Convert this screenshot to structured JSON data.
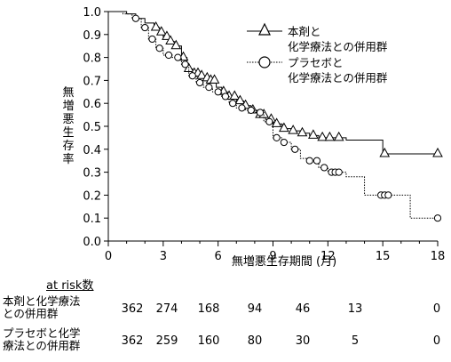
{
  "chart_data": {
    "type": "line",
    "subtype": "kaplan-meier",
    "ylabel": "無増悪生存率",
    "xlabel": "無増悪生存期間 (月)",
    "xlim": [
      0,
      18
    ],
    "ylim": [
      0,
      1.0
    ],
    "xticks": [
      "0",
      "3",
      "6",
      "9",
      "12",
      "15",
      "18"
    ],
    "yticks": [
      "0.0",
      "0.1",
      "0.2",
      "0.3",
      "0.4",
      "0.5",
      "0.6",
      "0.7",
      "0.8",
      "0.9",
      "1.0"
    ],
    "legend_position": "top-right",
    "series": [
      {
        "name": "本剤と\n化学療法との併用群",
        "marker": "triangle",
        "line_style": "solid",
        "steps": [
          [
            0,
            1.0
          ],
          [
            0.5,
            1.0
          ],
          [
            1.0,
            0.99
          ],
          [
            1.5,
            0.97
          ],
          [
            2.0,
            0.95
          ],
          [
            2.5,
            0.93
          ],
          [
            2.8,
            0.91
          ],
          [
            3.0,
            0.89
          ],
          [
            3.3,
            0.87
          ],
          [
            3.6,
            0.85
          ],
          [
            4.0,
            0.8
          ],
          [
            4.3,
            0.75
          ],
          [
            4.6,
            0.73
          ],
          [
            5.0,
            0.72
          ],
          [
            5.3,
            0.71
          ],
          [
            5.6,
            0.7
          ],
          [
            5.9,
            0.67
          ],
          [
            6.2,
            0.65
          ],
          [
            6.5,
            0.63
          ],
          [
            7.0,
            0.61
          ],
          [
            7.4,
            0.59
          ],
          [
            7.8,
            0.57
          ],
          [
            8.2,
            0.55
          ],
          [
            8.6,
            0.53
          ],
          [
            9.0,
            0.51
          ],
          [
            9.5,
            0.49
          ],
          [
            10.0,
            0.48
          ],
          [
            10.5,
            0.47
          ],
          [
            11.0,
            0.46
          ],
          [
            11.5,
            0.45
          ],
          [
            12.0,
            0.45
          ],
          [
            13.0,
            0.44
          ],
          [
            14.0,
            0.44
          ],
          [
            15.0,
            0.38
          ],
          [
            18.0,
            0.38
          ]
        ],
        "censor_x": [
          2.6,
          2.9,
          3.2,
          3.4,
          3.7,
          4.1,
          4.4,
          4.7,
          4.9,
          5.1,
          5.4,
          5.6,
          5.8,
          6.3,
          6.6,
          6.9,
          7.2,
          7.5,
          7.9,
          8.3,
          8.5,
          8.9,
          9.2,
          9.6,
          10.1,
          10.6,
          11.2,
          11.7,
          12.1,
          12.6,
          15.1,
          18.0
        ]
      },
      {
        "name": "プラセボと\n化学療法との併用群",
        "marker": "circle",
        "line_style": "dotted",
        "steps": [
          [
            0,
            1.0
          ],
          [
            0.8,
            0.99
          ],
          [
            1.3,
            0.97
          ],
          [
            1.8,
            0.93
          ],
          [
            2.2,
            0.88
          ],
          [
            2.6,
            0.84
          ],
          [
            3.0,
            0.81
          ],
          [
            3.5,
            0.8
          ],
          [
            4.0,
            0.77
          ],
          [
            4.4,
            0.72
          ],
          [
            4.8,
            0.69
          ],
          [
            5.2,
            0.67
          ],
          [
            5.7,
            0.65
          ],
          [
            6.2,
            0.63
          ],
          [
            6.6,
            0.6
          ],
          [
            7.0,
            0.58
          ],
          [
            7.5,
            0.57
          ],
          [
            8.0,
            0.56
          ],
          [
            8.5,
            0.52
          ],
          [
            9.0,
            0.45
          ],
          [
            9.5,
            0.43
          ],
          [
            10.0,
            0.4
          ],
          [
            10.5,
            0.36
          ],
          [
            11.0,
            0.35
          ],
          [
            11.5,
            0.32
          ],
          [
            12.0,
            0.3
          ],
          [
            13.0,
            0.28
          ],
          [
            14.0,
            0.2
          ],
          [
            15.0,
            0.2
          ],
          [
            16.0,
            0.2
          ],
          [
            16.5,
            0.1
          ],
          [
            18.0,
            0.1
          ]
        ],
        "censor_x": [
          1.5,
          2.0,
          2.4,
          2.8,
          3.3,
          3.8,
          4.2,
          4.6,
          5.0,
          5.5,
          6.0,
          6.4,
          6.8,
          7.3,
          7.8,
          8.3,
          8.8,
          9.2,
          9.6,
          10.2,
          11.0,
          11.4,
          11.8,
          12.2,
          12.4,
          12.6,
          14.9,
          15.1,
          15.3,
          18.0
        ]
      }
    ]
  },
  "risk_table": {
    "title": "at risk数",
    "rows": [
      {
        "label": "本剤と化学療法\nとの併用群",
        "values": [
          "362",
          "274",
          "168",
          "94",
          "46",
          "13",
          "0"
        ]
      },
      {
        "label": "プラセボと化学\n療法との併用群",
        "values": [
          "362",
          "259",
          "160",
          "80",
          "30",
          "5",
          "0"
        ]
      }
    ]
  }
}
